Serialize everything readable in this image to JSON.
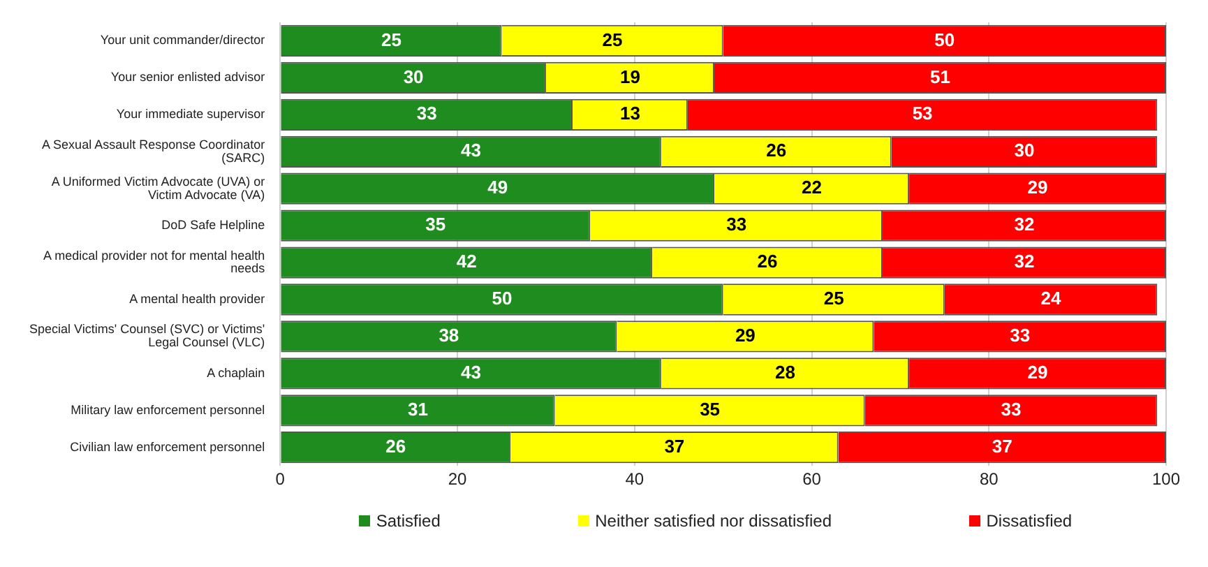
{
  "chart_data": {
    "type": "bar",
    "orientation": "horizontal",
    "stacked": true,
    "data_labels": true,
    "grid": "x",
    "legend": "bottom",
    "categories": [
      "Your unit commander/director",
      "Your senior enlisted advisor",
      "Your immediate supervisor",
      "A Sexual Assault Response Coordinator (SARC)",
      "A Uniformed Victim Advocate (UVA) or Victim Advocate (VA)",
      "DoD Safe Helpline",
      "A medical provider not for mental health needs",
      "A mental health provider",
      "Special Victims' Counsel (SVC) or Victims' Legal Counsel (VLC)",
      "A chaplain",
      "Military law enforcement personnel",
      "Civilian law enforcement personnel"
    ],
    "xlim": [
      0,
      100
    ],
    "xticks": [
      0,
      20,
      40,
      60,
      80,
      100
    ],
    "series": [
      {
        "name": "Satisfied",
        "color": "#1e8c1e",
        "values": [
          25,
          30,
          33,
          43,
          49,
          35,
          42,
          50,
          38,
          43,
          31,
          26
        ]
      },
      {
        "name": "Neither satisfied nor dissatisfied",
        "color": "#ffff00",
        "values": [
          25,
          19,
          13,
          26,
          22,
          33,
          26,
          25,
          29,
          28,
          35,
          37
        ]
      },
      {
        "name": "Dissatisfied",
        "color": "#ff0000",
        "values": [
          50,
          51,
          53,
          30,
          29,
          32,
          32,
          24,
          33,
          29,
          33,
          37
        ]
      }
    ]
  }
}
